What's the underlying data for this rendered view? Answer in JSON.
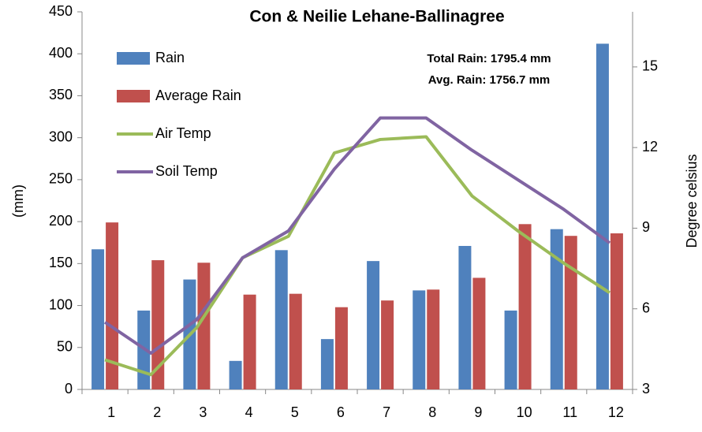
{
  "chart_data": {
    "type": "bar_line",
    "title": "Con & Neilie Lehane-Ballinagree",
    "annotations": [
      "Total Rain: 1795.4 mm",
      "Avg. Rain:  1756.7 mm"
    ],
    "y_label": "(mm)",
    "y2_label": "Degree celsius",
    "categories": [
      "1",
      "2",
      "3",
      "4",
      "5",
      "6",
      "7",
      "8",
      "9",
      "10",
      "11",
      "12"
    ],
    "series": [
      {
        "name": "Rain",
        "type": "bar",
        "color": "#4f81bd",
        "values": [
          167,
          94,
          131,
          34,
          166,
          60,
          153,
          118,
          171,
          94,
          191,
          412
        ]
      },
      {
        "name": "Average Rain",
        "type": "bar",
        "color": "#c0504d",
        "values": [
          199,
          154,
          151,
          113,
          114,
          98,
          106,
          119,
          133,
          197,
          183,
          186
        ]
      },
      {
        "name": "Air Temp",
        "type": "line",
        "axis": "y2",
        "color": "#9bbb59",
        "values": [
          4.1,
          3.55,
          5.3,
          7.9,
          8.7,
          11.8,
          12.3,
          12.4,
          10.2,
          8.9,
          7.7,
          6.6
        ]
      },
      {
        "name": "Soil Temp",
        "type": "line",
        "axis": "y2",
        "color": "#8064a2",
        "values": [
          5.5,
          4.35,
          5.6,
          7.9,
          8.9,
          11.2,
          13.1,
          13.1,
          11.9,
          10.8,
          9.7,
          8.45
        ]
      }
    ],
    "ylim": [
      0,
      450
    ],
    "yticks": [
      0,
      50,
      100,
      150,
      200,
      250,
      300,
      350,
      400,
      450
    ],
    "y2lim": [
      3,
      17.05
    ],
    "y2ticks": [
      3,
      6,
      9,
      12,
      15
    ],
    "grid": false,
    "legend": "upper left"
  }
}
